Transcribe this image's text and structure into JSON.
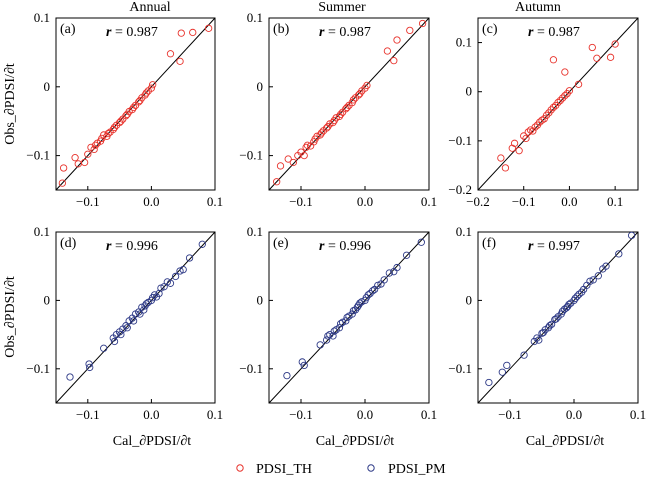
{
  "figure": {
    "column_titles": [
      "Annual",
      "Summer",
      "Autumn"
    ],
    "y_axis_label": "Obs_∂PDSI/∂t",
    "x_axis_label": "Cal_∂PDSI/∂t",
    "legend": [
      {
        "name": "PDSI_TH",
        "color": "#e8332c",
        "marker": "open-circle"
      },
      {
        "name": "PDSI_PM",
        "color": "#2e3a87",
        "marker": "open-circle"
      }
    ]
  },
  "chart_data": [
    {
      "type": "scatter",
      "panel_label": "(a)",
      "column": "Annual",
      "series_name": "PDSI_TH",
      "r_text": "= 0.987",
      "xlim": [
        -0.15,
        0.1
      ],
      "ylim": [
        -0.15,
        0.1
      ],
      "xticks": [
        -0.1,
        0.0,
        0.1
      ],
      "xtick_labels": [
        "−0.1",
        "0.0",
        "0.1"
      ],
      "yticks": [
        0.1,
        0,
        -0.1
      ],
      "ytick_labels": [
        "0.1",
        "0",
        "−0.1"
      ],
      "x": [
        -0.14,
        -0.138,
        -0.12,
        -0.115,
        -0.105,
        -0.1,
        -0.095,
        -0.09,
        -0.088,
        -0.085,
        -0.08,
        -0.078,
        -0.075,
        -0.07,
        -0.068,
        -0.065,
        -0.06,
        -0.058,
        -0.055,
        -0.05,
        -0.048,
        -0.045,
        -0.04,
        -0.038,
        -0.035,
        -0.03,
        -0.028,
        -0.025,
        -0.02,
        -0.018,
        -0.015,
        -0.01,
        -0.008,
        -0.005,
        0.0,
        0.002,
        0.03,
        0.045,
        0.047,
        0.065,
        0.09
      ],
      "y": [
        -0.14,
        -0.118,
        -0.103,
        -0.112,
        -0.11,
        -0.098,
        -0.088,
        -0.091,
        -0.085,
        -0.082,
        -0.079,
        -0.075,
        -0.07,
        -0.072,
        -0.068,
        -0.066,
        -0.062,
        -0.059,
        -0.056,
        -0.052,
        -0.05,
        -0.047,
        -0.042,
        -0.04,
        -0.036,
        -0.033,
        -0.03,
        -0.027,
        -0.022,
        -0.02,
        -0.016,
        -0.012,
        -0.009,
        -0.006,
        -0.002,
        0.003,
        0.048,
        0.037,
        0.078,
        0.079,
        0.085
      ]
    },
    {
      "type": "scatter",
      "panel_label": "(b)",
      "column": "Summer",
      "series_name": "PDSI_TH",
      "r_text": "= 0.987",
      "xlim": [
        -0.15,
        0.1
      ],
      "ylim": [
        -0.15,
        0.1
      ],
      "xticks": [
        -0.1,
        0.0,
        0.1
      ],
      "xtick_labels": [
        "−0.1",
        "0.0",
        "0.1"
      ],
      "yticks": [
        0.1,
        0,
        -0.1
      ],
      "ytick_labels": [
        "0.1",
        "0",
        "−0.1"
      ],
      "x": [
        -0.138,
        -0.132,
        -0.12,
        -0.112,
        -0.105,
        -0.1,
        -0.095,
        -0.092,
        -0.09,
        -0.085,
        -0.08,
        -0.078,
        -0.075,
        -0.07,
        -0.068,
        -0.065,
        -0.06,
        -0.058,
        -0.055,
        -0.05,
        -0.048,
        -0.045,
        -0.04,
        -0.038,
        -0.035,
        -0.03,
        -0.028,
        -0.025,
        -0.02,
        -0.018,
        -0.015,
        -0.01,
        -0.008,
        -0.005,
        0.0,
        0.003,
        0.035,
        0.045,
        0.05,
        0.07,
        0.09
      ],
      "y": [
        -0.138,
        -0.115,
        -0.105,
        -0.11,
        -0.1,
        -0.095,
        -0.1,
        -0.088,
        -0.085,
        -0.086,
        -0.08,
        -0.076,
        -0.072,
        -0.07,
        -0.067,
        -0.064,
        -0.06,
        -0.058,
        -0.054,
        -0.052,
        -0.049,
        -0.045,
        -0.043,
        -0.04,
        -0.037,
        -0.032,
        -0.03,
        -0.027,
        -0.023,
        -0.019,
        -0.016,
        -0.012,
        -0.01,
        -0.006,
        -0.002,
        0.002,
        0.052,
        0.038,
        0.068,
        0.082,
        0.092
      ]
    },
    {
      "type": "scatter",
      "panel_label": "(c)",
      "column": "Autumn",
      "series_name": "PDSI_TH",
      "r_text": "= 0.987",
      "xlim": [
        -0.2,
        0.15
      ],
      "ylim": [
        -0.2,
        0.15
      ],
      "xticks": [
        -0.2,
        -0.1,
        0.0,
        0.1
      ],
      "xtick_labels": [
        "−0.2",
        "−0.1",
        "0.0",
        "0.1"
      ],
      "yticks": [
        0.1,
        0,
        -0.1,
        -0.2
      ],
      "ytick_labels": [
        "0.1",
        "0",
        "−0.1",
        "−0.2"
      ],
      "x": [
        -0.15,
        -0.14,
        -0.125,
        -0.12,
        -0.11,
        -0.1,
        -0.095,
        -0.09,
        -0.085,
        -0.08,
        -0.075,
        -0.07,
        -0.065,
        -0.06,
        -0.055,
        -0.05,
        -0.045,
        -0.04,
        -0.035,
        -0.03,
        -0.025,
        -0.02,
        -0.015,
        -0.01,
        -0.005,
        0.0,
        -0.035,
        -0.01,
        0.02,
        0.05,
        0.06,
        0.09,
        0.1
      ],
      "y": [
        -0.135,
        -0.155,
        -0.115,
        -0.105,
        -0.12,
        -0.09,
        -0.095,
        -0.082,
        -0.078,
        -0.08,
        -0.072,
        -0.068,
        -0.062,
        -0.058,
        -0.055,
        -0.048,
        -0.043,
        -0.037,
        -0.032,
        -0.028,
        -0.022,
        -0.018,
        -0.013,
        -0.008,
        -0.004,
        0.002,
        0.065,
        0.04,
        0.015,
        0.09,
        0.068,
        0.07,
        0.097
      ]
    },
    {
      "type": "scatter",
      "panel_label": "(d)",
      "column": "Annual",
      "series_name": "PDSI_PM",
      "r_text": "= 0.996",
      "xlim": [
        -0.15,
        0.1
      ],
      "ylim": [
        -0.15,
        0.1
      ],
      "xticks": [
        -0.1,
        0.0,
        0.1
      ],
      "xtick_labels": [
        "−0.1",
        "0.0",
        "0.1"
      ],
      "yticks": [
        0.1,
        0,
        -0.1
      ],
      "ytick_labels": [
        "0.1",
        "0",
        "−0.1"
      ],
      "x": [
        -0.128,
        -0.098,
        -0.097,
        -0.075,
        -0.06,
        -0.058,
        -0.055,
        -0.05,
        -0.048,
        -0.045,
        -0.04,
        -0.038,
        -0.035,
        -0.03,
        -0.028,
        -0.025,
        -0.02,
        -0.018,
        -0.015,
        -0.012,
        -0.01,
        -0.008,
        -0.005,
        0.0,
        0.002,
        0.005,
        0.008,
        0.012,
        0.015,
        0.02,
        0.025,
        0.03,
        0.038,
        0.045,
        0.05,
        0.06,
        0.08
      ],
      "y": [
        -0.112,
        -0.093,
        -0.098,
        -0.07,
        -0.055,
        -0.06,
        -0.05,
        -0.046,
        -0.05,
        -0.042,
        -0.037,
        -0.04,
        -0.03,
        -0.026,
        -0.03,
        -0.02,
        -0.017,
        -0.02,
        -0.01,
        -0.014,
        -0.008,
        -0.005,
        -0.003,
        0.0,
        0.004,
        0.008,
        0.005,
        0.01,
        0.018,
        0.02,
        0.027,
        0.025,
        0.035,
        0.043,
        0.045,
        0.062,
        0.082
      ]
    },
    {
      "type": "scatter",
      "panel_label": "(e)",
      "column": "Summer",
      "series_name": "PDSI_PM",
      "r_text": "= 0.996",
      "xlim": [
        -0.15,
        0.1
      ],
      "ylim": [
        -0.15,
        0.1
      ],
      "xticks": [
        -0.1,
        0.0,
        0.1
      ],
      "xtick_labels": [
        "−0.1",
        "0.0",
        "0.1"
      ],
      "yticks": [
        0.1,
        0,
        -0.1
      ],
      "ytick_labels": [
        "0.1",
        "0",
        "−0.1"
      ],
      "x": [
        -0.122,
        -0.098,
        -0.095,
        -0.07,
        -0.06,
        -0.058,
        -0.055,
        -0.05,
        -0.048,
        -0.045,
        -0.04,
        -0.038,
        -0.035,
        -0.03,
        -0.028,
        -0.025,
        -0.02,
        -0.018,
        -0.015,
        -0.012,
        -0.01,
        -0.008,
        -0.005,
        0.0,
        0.002,
        0.005,
        0.008,
        0.012,
        0.015,
        0.02,
        0.025,
        0.03,
        0.038,
        0.045,
        0.05,
        0.065,
        0.088
      ],
      "y": [
        -0.11,
        -0.09,
        -0.095,
        -0.065,
        -0.058,
        -0.052,
        -0.05,
        -0.052,
        -0.045,
        -0.043,
        -0.04,
        -0.034,
        -0.032,
        -0.03,
        -0.025,
        -0.023,
        -0.02,
        -0.015,
        -0.014,
        -0.01,
        -0.007,
        -0.004,
        -0.002,
        0.0,
        0.004,
        0.008,
        0.01,
        0.014,
        0.016,
        0.022,
        0.024,
        0.03,
        0.04,
        0.042,
        0.048,
        0.066,
        0.085
      ]
    },
    {
      "type": "scatter",
      "panel_label": "(f)",
      "column": "Autumn",
      "series_name": "PDSI_PM",
      "r_text": "= 0.997",
      "xlim": [
        -0.15,
        0.1
      ],
      "ylim": [
        -0.15,
        0.1
      ],
      "xticks": [
        -0.1,
        0.0,
        0.1
      ],
      "xtick_labels": [
        "−0.1",
        "0.0",
        "0.1"
      ],
      "yticks": [
        0.1,
        0,
        -0.1
      ],
      "ytick_labels": [
        "0.1",
        "0",
        "−0.1"
      ],
      "x": [
        -0.133,
        -0.112,
        -0.105,
        -0.078,
        -0.062,
        -0.058,
        -0.055,
        -0.05,
        -0.048,
        -0.045,
        -0.04,
        -0.038,
        -0.035,
        -0.03,
        -0.028,
        -0.025,
        -0.02,
        -0.018,
        -0.015,
        -0.012,
        -0.01,
        -0.008,
        -0.005,
        0.0,
        0.002,
        0.005,
        0.008,
        0.012,
        0.015,
        0.02,
        0.025,
        0.03,
        0.038,
        0.045,
        0.05,
        0.07,
        0.09
      ],
      "y": [
        -0.12,
        -0.105,
        -0.095,
        -0.08,
        -0.06,
        -0.055,
        -0.058,
        -0.048,
        -0.047,
        -0.043,
        -0.04,
        -0.037,
        -0.035,
        -0.028,
        -0.027,
        -0.024,
        -0.02,
        -0.016,
        -0.013,
        -0.011,
        -0.009,
        -0.006,
        -0.004,
        0.0,
        0.003,
        0.006,
        0.009,
        0.012,
        0.016,
        0.022,
        0.028,
        0.03,
        0.036,
        0.046,
        0.05,
        0.068,
        0.095
      ]
    }
  ]
}
